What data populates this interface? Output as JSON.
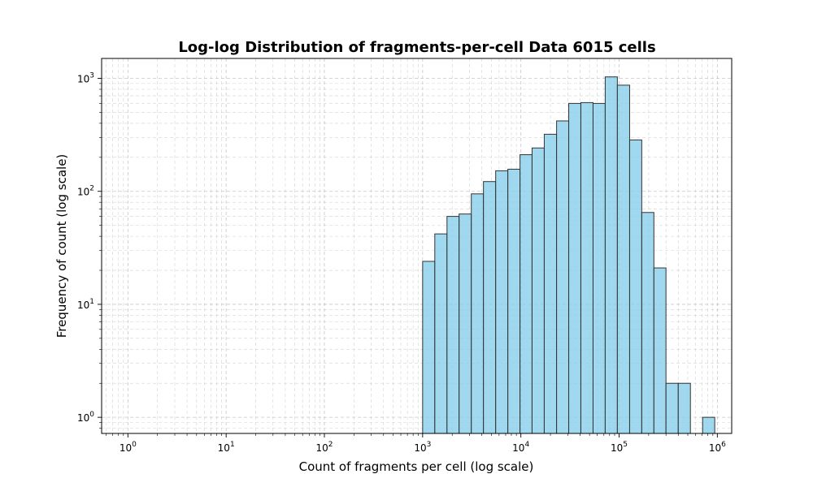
{
  "chart_data": {
    "type": "bar",
    "title": "Log-log Distribution of fragments-per-cell Data 6015 cells",
    "xlabel": "Count of fragments per cell (log scale)",
    "ylabel": "Frequency of count (log scale)",
    "x_scale": "log",
    "y_scale": "log",
    "xlim": [
      0.54,
      1400000
    ],
    "ylim": [
      0.72,
      1500
    ],
    "grid": true,
    "grid_style": "dashed",
    "bar_fill": "#87CEEB",
    "bar_edge": "#333333",
    "x_ticks": [
      {
        "base": "10",
        "exp": "0",
        "value": 1
      },
      {
        "base": "10",
        "exp": "1",
        "value": 10
      },
      {
        "base": "10",
        "exp": "2",
        "value": 100
      },
      {
        "base": "10",
        "exp": "3",
        "value": 1000
      },
      {
        "base": "10",
        "exp": "4",
        "value": 10000
      },
      {
        "base": "10",
        "exp": "5",
        "value": 100000
      },
      {
        "base": "10",
        "exp": "6",
        "value": 1000000
      }
    ],
    "y_ticks": [
      {
        "base": "10",
        "exp": "0",
        "value": 1
      },
      {
        "base": "10",
        "exp": "1",
        "value": 10
      },
      {
        "base": "10",
        "exp": "2",
        "value": 100
      },
      {
        "base": "10",
        "exp": "3",
        "value": 1000
      }
    ],
    "bins": [
      {
        "x0": 1000,
        "x1": 1330,
        "count": 24
      },
      {
        "x0": 1330,
        "x1": 1770,
        "count": 42
      },
      {
        "x0": 1770,
        "x1": 2350,
        "count": 60
      },
      {
        "x0": 2350,
        "x1": 3130,
        "count": 63
      },
      {
        "x0": 3130,
        "x1": 4160,
        "count": 95
      },
      {
        "x0": 4160,
        "x1": 5540,
        "count": 122
      },
      {
        "x0": 5540,
        "x1": 7370,
        "count": 152
      },
      {
        "x0": 7370,
        "x1": 9800,
        "count": 157
      },
      {
        "x0": 9800,
        "x1": 13000,
        "count": 211
      },
      {
        "x0": 13000,
        "x1": 17300,
        "count": 242
      },
      {
        "x0": 17300,
        "x1": 23100,
        "count": 320
      },
      {
        "x0": 23100,
        "x1": 30700,
        "count": 420
      },
      {
        "x0": 30700,
        "x1": 40800,
        "count": 600
      },
      {
        "x0": 40800,
        "x1": 54300,
        "count": 610
      },
      {
        "x0": 54300,
        "x1": 72200,
        "count": 600
      },
      {
        "x0": 72200,
        "x1": 96000,
        "count": 1030
      },
      {
        "x0": 96000,
        "x1": 128000,
        "count": 870
      },
      {
        "x0": 128000,
        "x1": 170000,
        "count": 285
      },
      {
        "x0": 170000,
        "x1": 226000,
        "count": 65
      },
      {
        "x0": 226000,
        "x1": 300000,
        "count": 21
      },
      {
        "x0": 300000,
        "x1": 400000,
        "count": 2
      },
      {
        "x0": 400000,
        "x1": 532000,
        "count": 2
      },
      {
        "x0": 532000,
        "x1": 708000,
        "count": 0
      },
      {
        "x0": 708000,
        "x1": 941000,
        "count": 1
      }
    ]
  }
}
